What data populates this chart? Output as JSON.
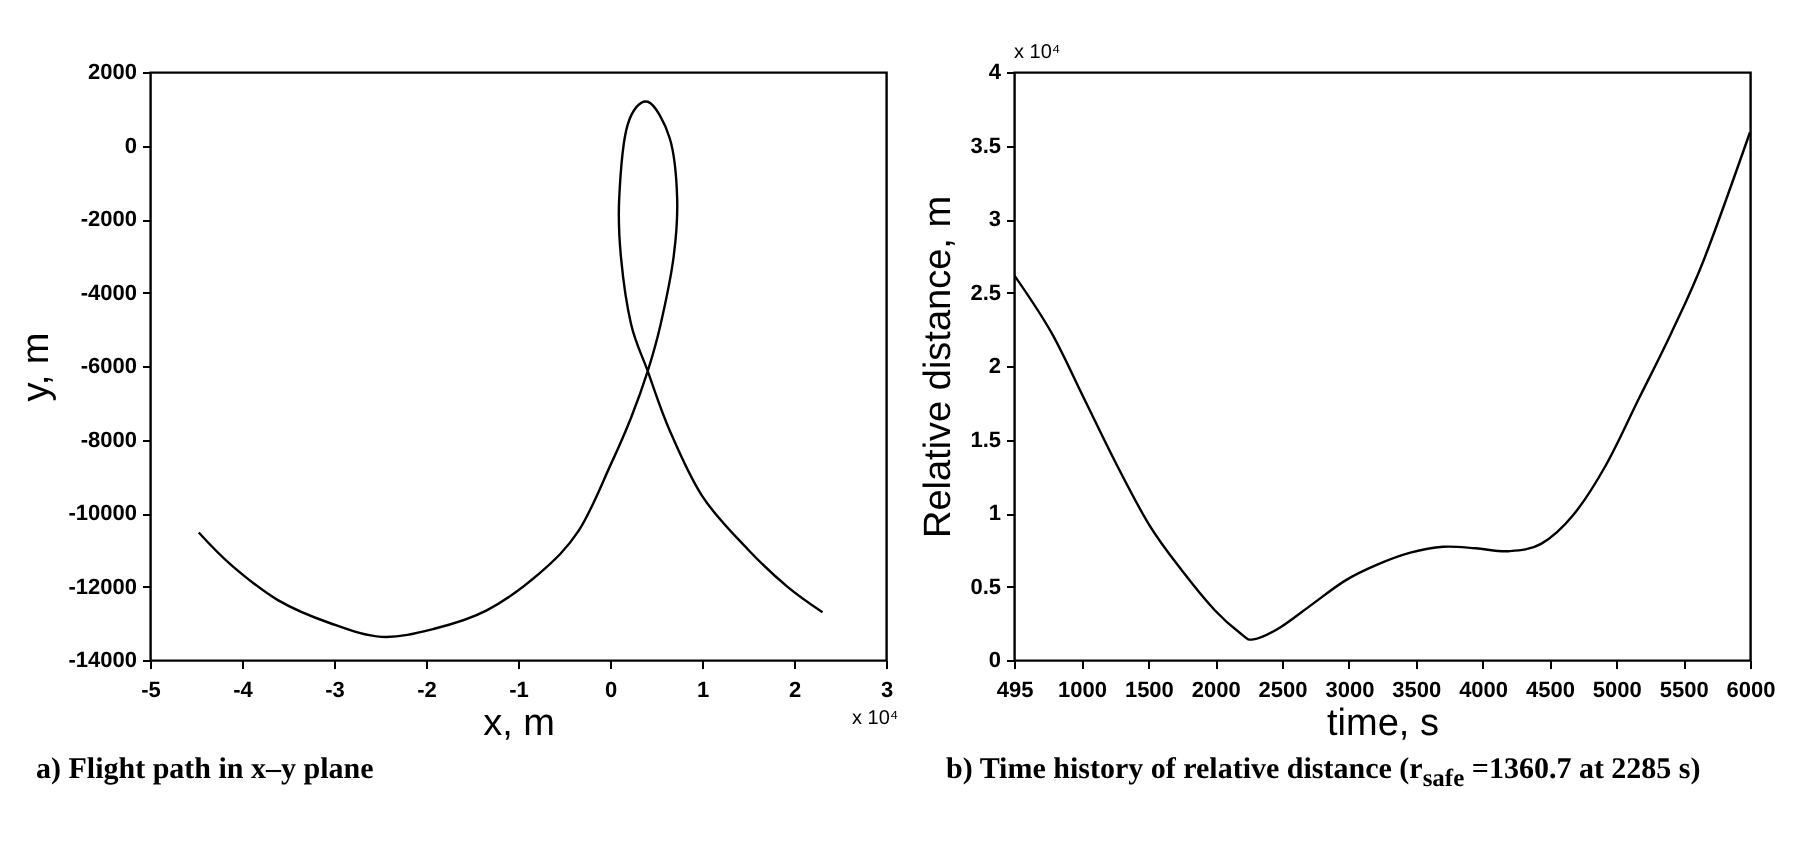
{
  "chart_data": [
    {
      "type": "line",
      "title": "a) Flight path in x–y plane",
      "xlabel": "x, m",
      "ylabel": "y, m",
      "xlim": [
        -5,
        3
      ],
      "xticks": [
        -5,
        -4,
        -3,
        -2,
        -1,
        0,
        1,
        2,
        3
      ],
      "ylim": [
        -14000,
        2000
      ],
      "yticks": [
        -14000,
        -12000,
        -10000,
        -8000,
        -6000,
        -4000,
        -2000,
        0,
        2000
      ],
      "annotations": [
        "x 10⁴"
      ],
      "series": [
        {
          "color": "#000000",
          "x": [
            -4.47,
            -4.11,
            -3.61,
            -3.04,
            -2.48,
            -1.91,
            -1.34,
            -0.77,
            -0.34,
            0.01,
            0.23,
            0.41,
            0.55,
            0.69,
            0.73,
            0.65,
            0.41,
            0.19,
            0.1,
            0.12,
            0.23,
            0.41,
            0.65,
            1.01,
            1.51,
            1.93,
            2.31
          ],
          "values": [
            -10530,
            -11430,
            -12370,
            -13000,
            -13370,
            -13150,
            -12650,
            -11650,
            -10480,
            -8670,
            -7400,
            -6140,
            -4870,
            -3060,
            -1440,
            190,
            1190,
            550,
            -1440,
            -3060,
            -4870,
            -6140,
            -7760,
            -9570,
            -11020,
            -12010,
            -12700
          ]
        }
      ],
      "grid": false
    },
    {
      "type": "line",
      "title": "b) Time history of relative distance (r$_{safe}$ =1360.7 at 2285 s)",
      "xlabel": "time, s",
      "ylabel": "Relative distance, m",
      "xlim": [
        495,
        6000
      ],
      "xticks": [
        495,
        1000,
        1500,
        2000,
        2500,
        3000,
        3500,
        4000,
        4500,
        5000,
        5500,
        6000
      ],
      "ylim": [
        0,
        4
      ],
      "yticks": [
        0,
        0.5,
        1,
        1.5,
        2,
        2.5,
        3,
        3.5,
        4
      ],
      "annotations": [
        "x 10⁴"
      ],
      "series": [
        {
          "color": "#000000",
          "x": [
            495,
            773,
            1018,
            1262,
            1506,
            1750,
            1995,
            2190,
            2285,
            2483,
            2727,
            2972,
            3216,
            3460,
            3705,
            3949,
            4193,
            4437,
            4681,
            4925,
            5170,
            5414,
            5658,
            6000
          ],
          "values": [
            2.62,
            2.23,
            1.78,
            1.33,
            0.92,
            0.61,
            0.34,
            0.18,
            0.14,
            0.22,
            0.38,
            0.54,
            0.65,
            0.73,
            0.77,
            0.76,
            0.74,
            0.79,
            0.99,
            1.33,
            1.78,
            2.23,
            2.73,
            3.59
          ]
        }
      ],
      "grid": false
    }
  ]
}
